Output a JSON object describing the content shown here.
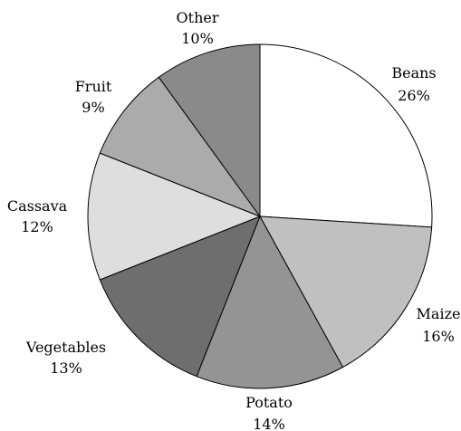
{
  "chart_data": {
    "type": "pie",
    "start": "12 o'clock",
    "direction": "clockwise",
    "slices": [
      {
        "label": "Beans",
        "value": 26,
        "value_label": "26%",
        "color": "#ffffff"
      },
      {
        "label": "Maize",
        "value": 16,
        "value_label": "16%",
        "color": "#c0c0c0"
      },
      {
        "label": "Potato",
        "value": 14,
        "value_label": "14%",
        "color": "#949494"
      },
      {
        "label": "Vegetables",
        "value": 13,
        "value_label": "13%",
        "color": "#6e6e6e"
      },
      {
        "label": "Cassava",
        "value": 12,
        "value_label": "12%",
        "color": "#dedede"
      },
      {
        "label": "Fruit",
        "value": 9,
        "value_label": "9%",
        "color": "#ababab"
      },
      {
        "label": "Other",
        "value": 10,
        "value_label": "10%",
        "color": "#8a8a8a"
      }
    ]
  }
}
